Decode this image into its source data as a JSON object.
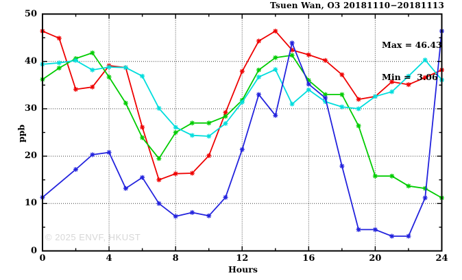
{
  "title": "Tsuen Wan, O3 20181110−20181113",
  "annotation": {
    "max_label": "Max = 46.43",
    "min_label": "Min =  3.06"
  },
  "watermark": "© 2025 ENVF, HKUST",
  "chart_data": {
    "type": "line",
    "title": "Tsuen Wan, O3 20181110−20181113",
    "xlabel": "Hours",
    "ylabel": "ppb",
    "xlim": [
      0,
      24
    ],
    "ylim": [
      0,
      50
    ],
    "x_ticks": [
      0,
      4,
      8,
      12,
      16,
      20,
      24
    ],
    "y_ticks": [
      0,
      10,
      20,
      30,
      40,
      50
    ],
    "minor_x_tick_step": 2,
    "minor_y_tick_step": 5,
    "grid": true,
    "grid_style": "dotted",
    "legend": "none",
    "marker": "asterisk",
    "x": [
      0,
      1,
      2,
      3,
      4,
      5,
      6,
      7,
      8,
      9,
      10,
      11,
      12,
      13,
      14,
      15,
      16,
      17,
      18,
      19,
      20,
      21,
      22,
      23,
      24
    ],
    "series": [
      {
        "name": "series-red",
        "color": "#ee0000",
        "values": [
          46.4,
          44.9,
          34.1,
          34.6,
          39.1,
          38.7,
          26.1,
          15.0,
          16.3,
          16.4,
          20.1,
          29.2,
          37.9,
          44.3,
          46.4,
          42.4,
          41.4,
          40.2,
          37.2,
          32.0,
          32.6,
          35.7,
          35.1,
          36.6,
          38.2
        ]
      },
      {
        "name": "series-green",
        "color": "#00cc00",
        "values": [
          36.2,
          38.6,
          40.6,
          41.8,
          36.7,
          31.2,
          23.9,
          19.5,
          25.0,
          27.0,
          27.0,
          28.4,
          31.8,
          38.2,
          40.8,
          41.3,
          36.0,
          33.0,
          33.0,
          26.4,
          15.8,
          15.8,
          13.7,
          13.2,
          11.2
        ]
      },
      {
        "name": "series-cyan",
        "color": "#00dddd",
        "values": [
          39.4,
          39.7,
          40.2,
          38.2,
          38.8,
          38.7,
          36.9,
          30.1,
          26.1,
          24.4,
          24.2,
          26.9,
          31.4,
          36.7,
          38.3,
          31.0,
          34.0,
          31.5,
          30.4,
          30.0,
          32.6,
          33.6,
          36.9,
          40.3,
          36.1
        ]
      },
      {
        "name": "series-blue",
        "color": "#2222dd",
        "values": [
          11.3,
          null,
          17.2,
          20.3,
          20.8,
          13.2,
          15.5,
          10.0,
          7.3,
          8.1,
          7.4,
          11.3,
          21.4,
          33.0,
          28.6,
          43.9,
          35.2,
          32.3,
          17.9,
          4.5,
          4.5,
          3.1,
          3.1,
          11.2,
          46.4
        ]
      }
    ],
    "stats": {
      "max": 46.43,
      "min": 3.06
    }
  }
}
